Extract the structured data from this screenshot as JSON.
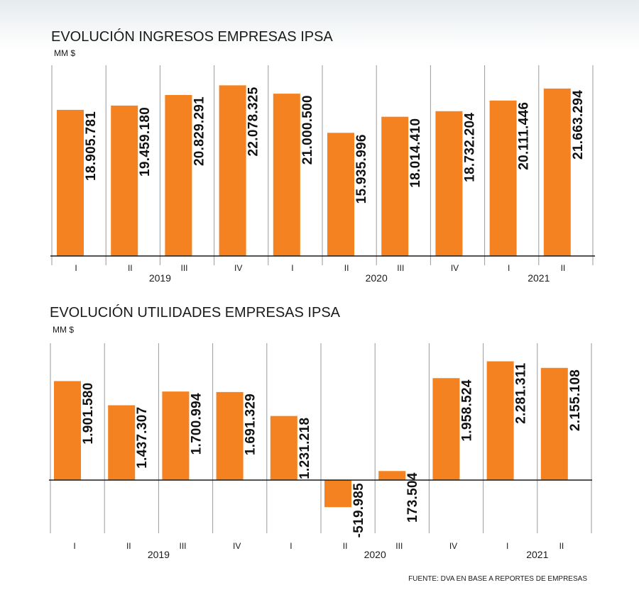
{
  "colors": {
    "bar": "#f58220",
    "divider": "#9a9a9a",
    "axis": "#1a1a1a"
  },
  "source": "FUENTE: DVA EN BASE A REPORTES DE EMPRESAS",
  "chart_data": [
    {
      "type": "bar",
      "title": "EVOLUCIÓN INGRESOS EMPRESAS IPSA",
      "ylabel": "MM $",
      "categories": [
        "I",
        "II",
        "III",
        "IV",
        "I",
        "II",
        "III",
        "IV",
        "I",
        "II"
      ],
      "years": [
        {
          "label": "2019",
          "quarters": 4
        },
        {
          "label": "2020",
          "quarters": 4
        },
        {
          "label": "2021",
          "quarters": 2
        }
      ],
      "values": [
        18905781,
        19459180,
        20829291,
        22078325,
        21000500,
        15935996,
        18014410,
        18732204,
        20111446,
        21663294
      ],
      "value_labels": [
        "18.905.781",
        "19.459.180",
        "20.829.291",
        "22.078.325",
        "21.000.500",
        "15.935.996",
        "18.014.410",
        "18.732.204",
        "20.111.446",
        "21.663.294"
      ],
      "ylim": [
        0,
        24000000
      ],
      "grid": false
    },
    {
      "type": "bar",
      "title": "EVOLUCIÓN UTILIDADES EMPRESAS IPSA",
      "ylabel": "MM $",
      "categories": [
        "I",
        "II",
        "III",
        "IV",
        "I",
        "II",
        "III",
        "IV",
        "I",
        "II"
      ],
      "years": [
        {
          "label": "2019",
          "quarters": 4
        },
        {
          "label": "2020",
          "quarters": 4
        },
        {
          "label": "2021",
          "quarters": 2
        }
      ],
      "values": [
        1901580,
        1437307,
        1700994,
        1691329,
        1231218,
        -519985,
        173504,
        1958524,
        2281311,
        2155108
      ],
      "value_labels": [
        "1.901.580",
        "1.437.307",
        "1.700.994",
        "1.691.329",
        "1.231.218",
        "-519.985",
        "173.504",
        "1.958.524",
        "2.281.311",
        "2.155.108"
      ],
      "ylim": [
        -1000000,
        2500000
      ],
      "grid": false
    }
  ]
}
